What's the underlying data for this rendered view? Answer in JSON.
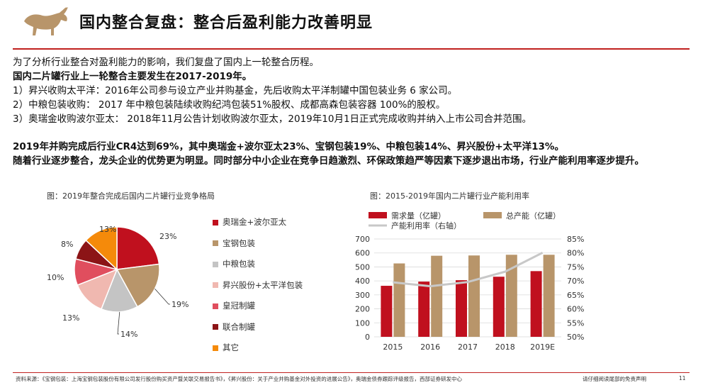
{
  "header": {
    "title": "国内整合复盘：整合后盈利能力改善明显"
  },
  "intro": {
    "line1": "为了分析行业整合对盈利能力的影响，我们复盘了国内上一轮整合历程。",
    "line2": "国内二片罐行业上一轮整合主要发生在2017-2019年。",
    "items": [
      "1）昇兴收购太平洋：2016年公司参与设立产业并购基金，先后收购太平洋制罐中国包装业务 6 家公司。",
      "2）中粮包装收购： 2017 年中粮包装陆续收购纪鸿包装51%股权、成都高森包装容器 100%的股权。",
      "3）奥瑞金收购波尔亚太： 2018年11月公告计划收购波尔亚太，2019年10月1日正式完成收购并纳入上市公司合并范围。"
    ]
  },
  "summary": {
    "line1": "2019年并购完成后行业CR4达到69%，其中奥瑞金+波尔亚太23%、宝钢包装19%、中粮包装14%、昇兴股份+太平洋13%。",
    "line2": "随着行业逐步整合，龙头企业的优势更为明显。同时部分中小企业在竞争日趋激烈、环保政策趋严等因素下逐步退出市场，行业产能利用率逐步提升。"
  },
  "pie_caption": "图：2019年整合完成后国内二片罐行业竞争格局",
  "bar_caption": "图：2015-2019年国内二片罐行业产能利用率",
  "chart_data": [
    {
      "type": "pie",
      "labels": [
        "奥瑞金+波尔亚太",
        "宝钢包装",
        "中粮包装",
        "昇兴股份+太平洋包装",
        "皇冠制罐",
        "联合制罐",
        "其它"
      ],
      "values": [
        23,
        19,
        14,
        13,
        10,
        8,
        13
      ],
      "value_labels": [
        "23%",
        "19%",
        "14%",
        "13%",
        "10%",
        "8%",
        "13%"
      ],
      "colors": [
        "#c0101e",
        "#b8956a",
        "#c4c4c4",
        "#f0b8b0",
        "#e04e5e",
        "#8c1416",
        "#f58a0a"
      ],
      "legend": "right"
    },
    {
      "type": "bar",
      "categories": [
        "2015",
        "2016",
        "2017",
        "2018",
        "2019E"
      ],
      "series": [
        {
          "name": "需求量（亿罐）",
          "values": [
            365,
            395,
            405,
            430,
            470
          ],
          "color": "#c0101e",
          "axis": "left"
        },
        {
          "name": "总产能（亿罐）",
          "values": [
            525,
            580,
            582,
            587,
            587
          ],
          "color": "#b8956a",
          "axis": "left"
        },
        {
          "name": "产能利用率（右轴）",
          "type": "line",
          "values": [
            69.5,
            68.1,
            69.6,
            73.3,
            80.1
          ],
          "color": "#c8c8c8",
          "axis": "right"
        }
      ],
      "ylim": [
        0,
        700
      ],
      "yticks": [
        0,
        100,
        200,
        300,
        400,
        500,
        600,
        700
      ],
      "y2lim": [
        50,
        85
      ],
      "y2ticks": [
        "50%",
        "55%",
        "60%",
        "65%",
        "70%",
        "75%",
        "80%",
        "85%"
      ],
      "grid": true,
      "legend": "top"
    }
  ],
  "footer": {
    "source": "资料来源：《宝钢包装：上海宝钢包装股份有限公司发行股份购买资产暨关联交易报告书》，《昇兴股份：关于产业并购基金对外投资的进展公告》，奥瑞金债券跟踪评级报告，西部证券研发中心",
    "disclaimer": "请仔细阅读尾部的免责声明",
    "page": "11"
  }
}
